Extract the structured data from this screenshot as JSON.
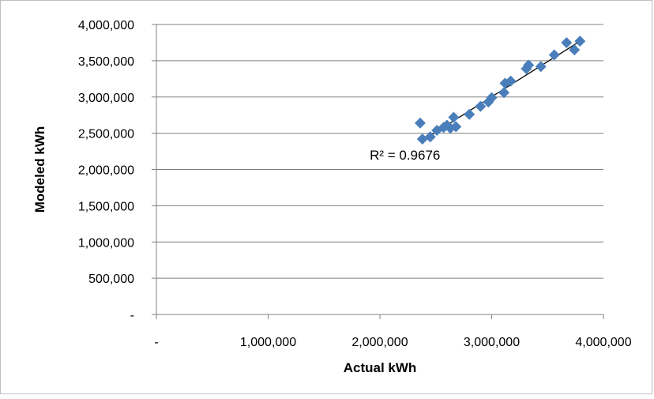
{
  "chart_data": {
    "type": "scatter",
    "title": "",
    "xlabel": "Actual kWh",
    "ylabel": "Modeled kWh",
    "xlim": [
      0,
      4000000
    ],
    "ylim": [
      0,
      4000000
    ],
    "x_ticks": [
      0,
      1000000,
      2000000,
      3000000,
      4000000
    ],
    "x_tick_labels": [
      "-",
      "1,000,000",
      "2,000,000",
      "3,000,000",
      "4,000,000"
    ],
    "y_ticks": [
      0,
      500000,
      1000000,
      1500000,
      2000000,
      2500000,
      3000000,
      3500000,
      4000000
    ],
    "y_tick_labels": [
      "-",
      "500,000",
      "1,000,000",
      "1,500,000",
      "2,000,000",
      "2,500,000",
      "3,000,000",
      "3,500,000",
      "4,000,000"
    ],
    "grid": "horizontal",
    "legend": "none",
    "marker": "diamond",
    "colors": {
      "marker": "#4a7ebb",
      "trendline": "#000000",
      "gridline": "#808080",
      "axis": "#808080"
    },
    "series": [
      {
        "points": [
          [
            2360000,
            2640000
          ],
          [
            2380000,
            2420000
          ],
          [
            2450000,
            2450000
          ],
          [
            2510000,
            2540000
          ],
          [
            2570000,
            2580000
          ],
          [
            2600000,
            2610000
          ],
          [
            2630000,
            2570000
          ],
          [
            2660000,
            2720000
          ],
          [
            2680000,
            2590000
          ],
          [
            2800000,
            2760000
          ],
          [
            2900000,
            2870000
          ],
          [
            2970000,
            2930000
          ],
          [
            3000000,
            2990000
          ],
          [
            3110000,
            3060000
          ],
          [
            3120000,
            3190000
          ],
          [
            3170000,
            3220000
          ],
          [
            3310000,
            3390000
          ],
          [
            3330000,
            3440000
          ],
          [
            3440000,
            3420000
          ],
          [
            3560000,
            3580000
          ],
          [
            3670000,
            3750000
          ],
          [
            3740000,
            3650000
          ],
          [
            3790000,
            3770000
          ]
        ]
      }
    ],
    "trendline": {
      "type": "linear",
      "x_range": [
        2380000,
        3780000
      ],
      "y_range": [
        2400000,
        3760000
      ],
      "r_squared_label": "R² = 0.9676",
      "label_at": [
        2050000,
        2200000
      ]
    }
  }
}
